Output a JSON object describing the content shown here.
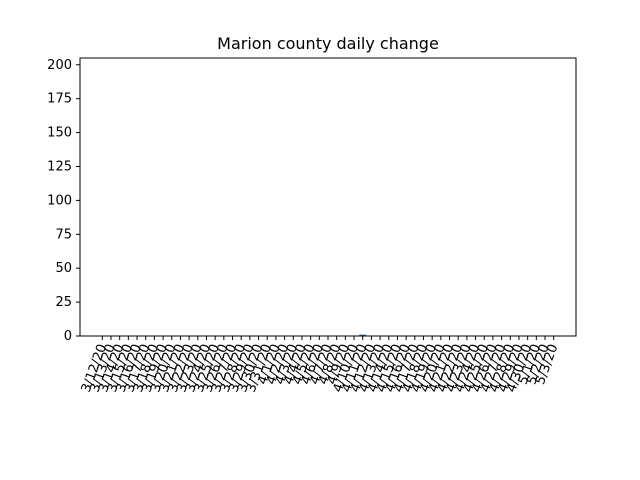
{
  "chart_data": {
    "type": "bar",
    "title": "Marion county daily change",
    "xlabel": "",
    "ylabel": "",
    "ylim": [
      0,
      205
    ],
    "yticks": [
      0,
      25,
      50,
      75,
      100,
      125,
      150,
      175,
      200
    ],
    "grid": false,
    "bar_color": "#1f77b4",
    "categories": [
      "3/12/20",
      "3/13/20",
      "3/14/20",
      "3/15/20",
      "3/16/20",
      "3/17/20",
      "3/18/20",
      "3/19/20",
      "3/20/20",
      "3/21/20",
      "3/22/20",
      "3/23/20",
      "3/24/20",
      "3/25/20",
      "3/26/20",
      "3/27/20",
      "3/28/20",
      "3/29/20",
      "3/30/20",
      "3/31/20",
      "4/1/20",
      "4/2/20",
      "4/3/20",
      "4/4/20",
      "4/5/20",
      "4/6/20",
      "4/7/20",
      "4/8/20",
      "4/9/20",
      "4/10/20",
      "4/11/20",
      "4/12/20",
      "4/13/20",
      "4/14/20",
      "4/15/20",
      "4/16/20",
      "4/17/20",
      "4/18/20",
      "4/19/20",
      "4/20/20",
      "4/21/20",
      "4/22/20",
      "4/23/20",
      "4/24/20",
      "4/25/20",
      "4/26/20",
      "4/27/20",
      "4/28/20",
      "4/29/20",
      "4/30/20",
      "5/1/20",
      "5/2/20",
      "5/3/20"
    ],
    "values": [
      0,
      0,
      0,
      0,
      0,
      0,
      0,
      0,
      0,
      0,
      0,
      0,
      0,
      0,
      0,
      0,
      0,
      0,
      0,
      0,
      0,
      0,
      0,
      0,
      0,
      0,
      0,
      0,
      0,
      0,
      1,
      0,
      0,
      0,
      0,
      0,
      0,
      0,
      0,
      0,
      0,
      0,
      0,
      0,
      0,
      0,
      0,
      0,
      0,
      0,
      0,
      0,
      0
    ]
  }
}
